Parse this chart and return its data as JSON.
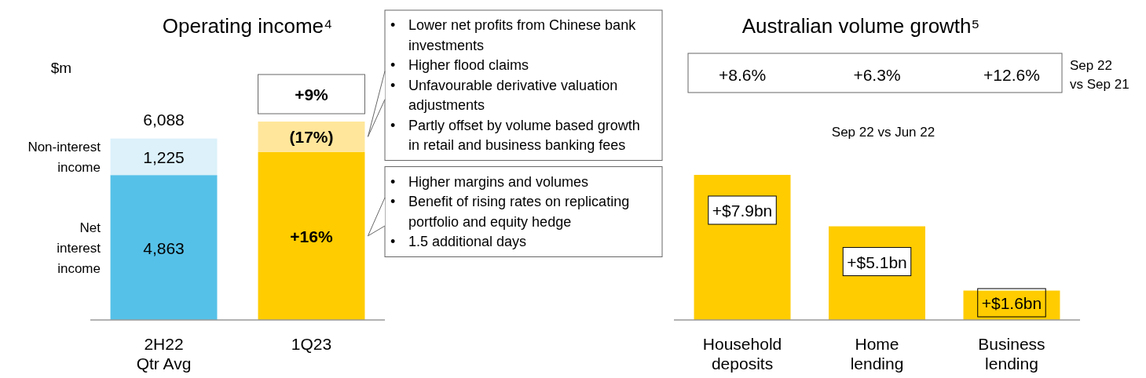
{
  "chart_data": [
    {
      "type": "bar",
      "title": "Operating income⁴",
      "ylabel": "$m",
      "categories": [
        "2H22 Qtr Avg",
        "1Q23"
      ],
      "stacked": true,
      "series": [
        {
          "name": "Net interest income",
          "colors": [
            "#56c1e8",
            "#ffcc00"
          ],
          "values": [
            4863,
            5641
          ],
          "value_labels": [
            "4,863",
            null
          ]
        },
        {
          "name": "Non-interest income",
          "colors": [
            "#dcf1fa",
            "#ffe69b"
          ],
          "values": [
            1225,
            1017
          ],
          "value_labels": [
            "1,225",
            null
          ]
        }
      ],
      "totals": [
        "6,088",
        null
      ],
      "annotations": [
        "+16%",
        "(17%)",
        {
          "text": "+9%",
          "x": "1Q23",
          "y": 6658
        },
        "• Lower net profits from Chinese bank investments\n• Higher flood claims\n• Unfavourable derivative valuation adjustments\n• Partly offset by volume based growth in retail and business banking fees",
        "• Higher margins and volumes\n• Benefit of rising rates on replicating portfolio and equity hedge\n• 1.5 additional days"
      ]
    },
    {
      "type": "bar",
      "title": "Australian volume growth⁵",
      "subtitle": "Sep 22 vs Jun 22",
      "categories": [
        "Household deposits",
        "Home lending",
        "Business lending"
      ],
      "values": [
        7.9,
        5.1,
        1.6
      ],
      "color": "#ffcc00",
      "value_labels": [
        "+$7.9bn",
        "+$5.1bn",
        "+$1.6bn"
      ],
      "annotations": [
        "+8.6%",
        "+6.3%",
        "+12.6%",
        "Sep 22 vs Sep 21"
      ]
    }
  ]
}
